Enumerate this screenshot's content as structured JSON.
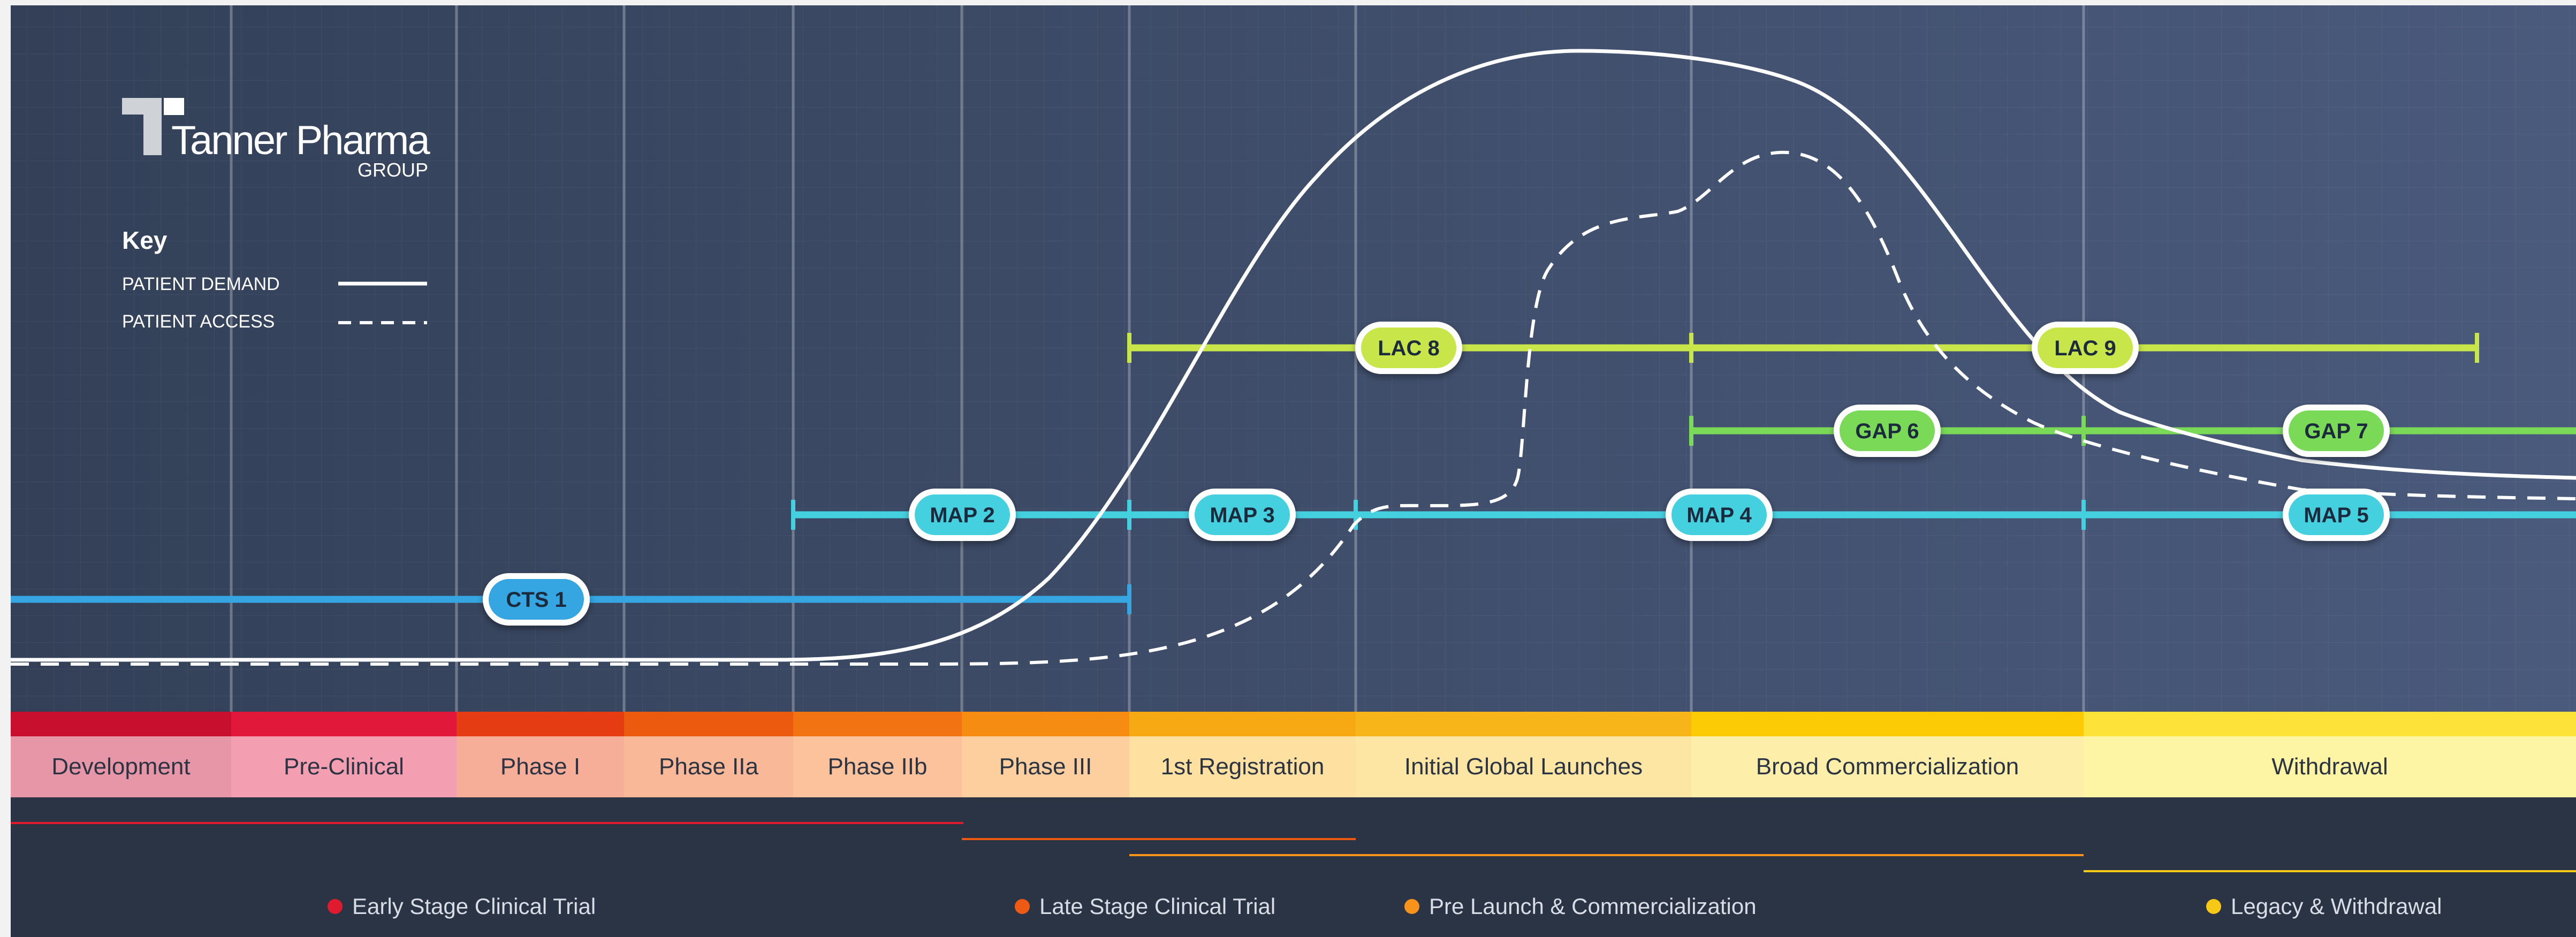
{
  "brand": {
    "name": "Tanner Pharma",
    "sub": "GROUP"
  },
  "key": {
    "title": "Key",
    "items": [
      {
        "label": "PATIENT DEMAND",
        "style": "solid"
      },
      {
        "label": "PATIENT ACCESS",
        "style": "dashed"
      }
    ]
  },
  "phases": [
    {
      "label": "Development",
      "band_color": "#c8102e",
      "fill_color": "#e796a8"
    },
    {
      "label": "Pre-Clinical",
      "band_color": "#e2183a",
      "fill_color": "#f49fb1"
    },
    {
      "label": "Phase I",
      "band_color": "#e63c14",
      "fill_color": "#f7ae98"
    },
    {
      "label": "Phase IIa",
      "band_color": "#ec5a0f",
      "fill_color": "#f9b898"
    },
    {
      "label": "Phase IIb",
      "band_color": "#f27312",
      "fill_color": "#fbc29b"
    },
    {
      "label": "Phase III",
      "band_color": "#f68d12",
      "fill_color": "#fdcf9f"
    },
    {
      "label": "1st Registration",
      "band_color": "#f7a914",
      "fill_color": "#fee0a1"
    },
    {
      "label": "Initial Global Launches",
      "band_color": "#f8b51a",
      "fill_color": "#fde6a3"
    },
    {
      "label": "Broad Commercialization",
      "band_color": "#fccb05",
      "fill_color": "#fdeeaa"
    },
    {
      "label": "Withdrawal",
      "band_color": "#fde23a",
      "fill_color": "#fdf4a4"
    }
  ],
  "programs": [
    {
      "label": "CTS 1",
      "color": "#35a6e1"
    },
    {
      "label": "MAP 2",
      "color": "#45d0df"
    },
    {
      "label": "MAP 3",
      "color": "#45d0df"
    },
    {
      "label": "MAP 4",
      "color": "#45d0df"
    },
    {
      "label": "MAP 5",
      "color": "#45d0df"
    },
    {
      "label": "GAP 6",
      "color": "#7ad957"
    },
    {
      "label": "GAP 7",
      "color": "#7ad957"
    },
    {
      "label": "LAC 8",
      "color": "#c8e64a"
    },
    {
      "label": "LAC 9",
      "color": "#c8e64a"
    }
  ],
  "legend": [
    {
      "label": "Early Stage Clinical Trial",
      "color": "#e01b2f"
    },
    {
      "label": "Late Stage Clinical Trial",
      "color": "#ee5a14"
    },
    {
      "label": "Pre Launch & Commercialization",
      "color": "#f7931a"
    },
    {
      "label": "Legacy & Withdrawal",
      "color": "#f7c815"
    }
  ],
  "colors": {
    "upper_background": "#3f4d6a",
    "lower_background": "#2b3445",
    "curve": "#ffffff"
  }
}
